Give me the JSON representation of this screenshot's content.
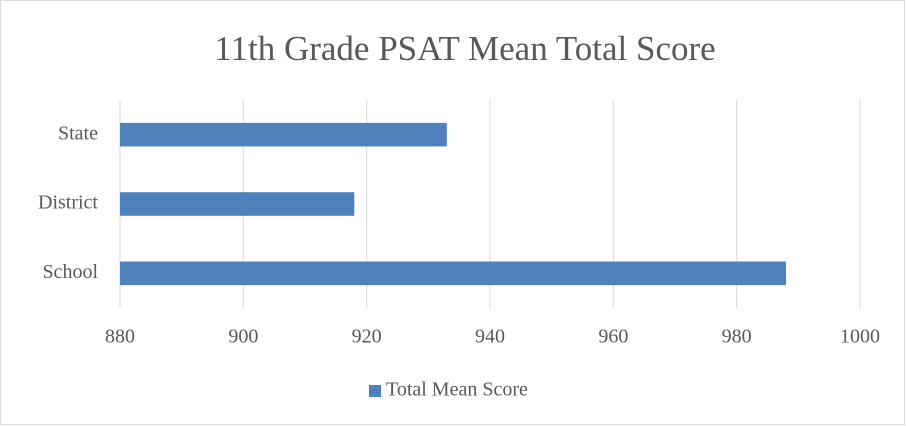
{
  "chart_data": {
    "type": "bar",
    "orientation": "horizontal",
    "title": "11th Grade PSAT Mean Total Score",
    "categories": [
      "State",
      "District",
      "School"
    ],
    "series": [
      {
        "name": "Total Mean Score",
        "color": "#4f81bd",
        "values": [
          933,
          918,
          988
        ]
      }
    ],
    "xlim": [
      880,
      1000
    ],
    "xticks": [
      880,
      900,
      920,
      940,
      960,
      980,
      1000
    ],
    "grid": true,
    "legend": "bottom"
  }
}
